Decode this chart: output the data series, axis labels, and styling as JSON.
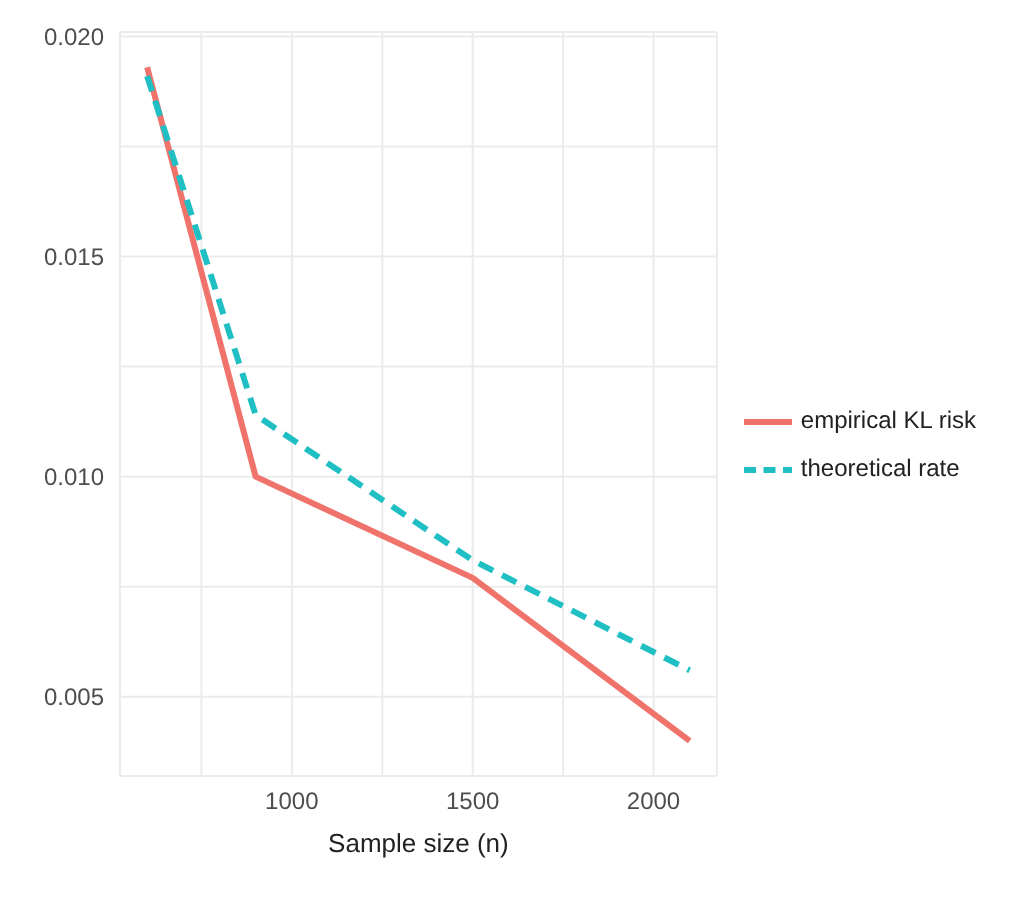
{
  "chart_data": {
    "type": "line",
    "xlabel": "Sample size (n)",
    "x": [
      600,
      900,
      1500,
      2100
    ],
    "series": [
      {
        "name": "empirical KL risk",
        "color": "#f0736b",
        "values": [
          0.0193,
          0.01,
          0.0077,
          0.004
        ],
        "line_style": "solid"
      },
      {
        "name": "theoretical rate",
        "color": "#1fbfc4",
        "values": [
          0.0191,
          0.0114,
          0.0081,
          0.0056
        ],
        "line_style": "dashed"
      }
    ],
    "xlim": [
      525,
      2175
    ],
    "xticks": [
      {
        "value": 750,
        "label": null
      },
      1000,
      {
        "value": 1250,
        "label": null
      },
      1500,
      {
        "value": 1750,
        "label": null
      },
      2000
    ],
    "ylim": [
      0.0032,
      0.0201
    ],
    "yticks": [
      0.005,
      {
        "value": 0.0075,
        "label": null
      },
      {
        "value": 0.01,
        "label": "0.010"
      },
      {
        "value": 0.0125,
        "label": null
      },
      0.015,
      {
        "value": 0.0175,
        "label": null
      },
      {
        "value": 0.02,
        "label": "0.020"
      }
    ],
    "grid": true,
    "legend": "right",
    "marker": "none"
  }
}
